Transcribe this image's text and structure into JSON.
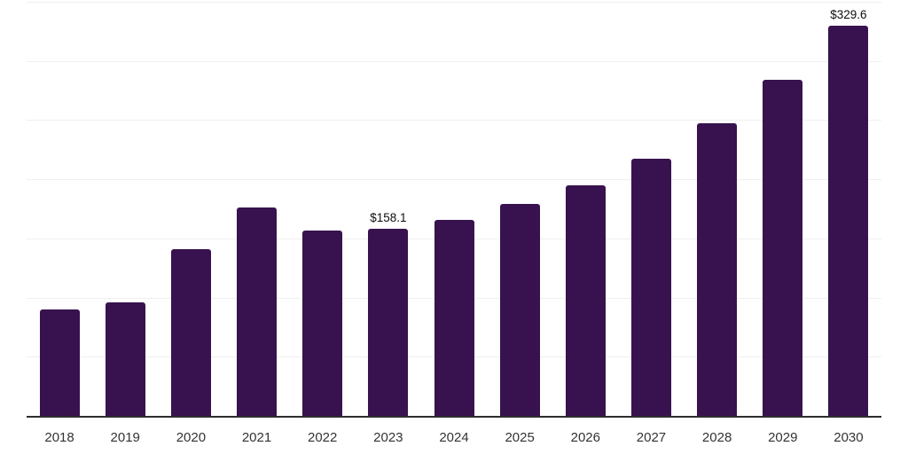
{
  "chart_data": {
    "type": "bar",
    "title": "",
    "xlabel": "",
    "ylabel": "",
    "categories": [
      "2018",
      "2019",
      "2020",
      "2021",
      "2022",
      "2023",
      "2024",
      "2025",
      "2026",
      "2027",
      "2028",
      "2029",
      "2030"
    ],
    "values": [
      89.7,
      96.2,
      141.2,
      175.8,
      156.6,
      158.1,
      166.0,
      179.3,
      194.9,
      217.4,
      247.5,
      283.8,
      329.6
    ],
    "value_labels": [
      {
        "category": "2023",
        "text": "$158.1"
      },
      {
        "category": "2030",
        "text": "$329.6"
      }
    ],
    "ylim": [
      0,
      350
    ],
    "gridline_step": 50,
    "grid": true,
    "legend": false,
    "bar_color": "#38124E",
    "axis_line_color": "#2d2d2d",
    "gridline_color": "#efefef",
    "tick_label_color": "#333333",
    "value_label_color": "#0d0d0d",
    "background_color": "#ffffff"
  }
}
